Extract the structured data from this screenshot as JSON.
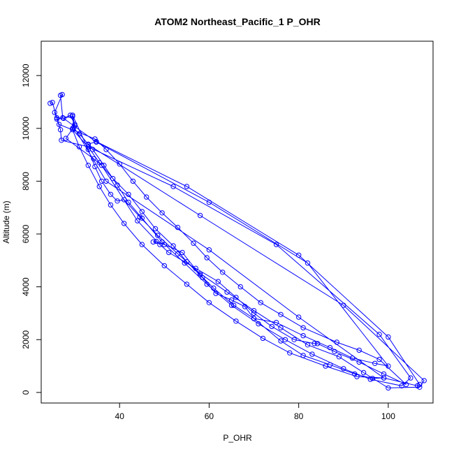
{
  "chart_data": {
    "type": "line",
    "title": "ATOM2 Northeast_Pacific_1 P_OHR",
    "xlabel": "P_OHR",
    "ylabel": "Altitude (m)",
    "xlim": [
      22.5,
      110
    ],
    "ylim": [
      -400,
      13300
    ],
    "xticks": [
      40,
      60,
      80,
      100
    ],
    "yticks": [
      0,
      2000,
      4000,
      6000,
      8000,
      10000,
      12000
    ],
    "grid": false,
    "legend": "none",
    "color": "#0000ff",
    "markers": "open-circle",
    "series": [
      {
        "points": [
          [
            24.5,
            10950
          ],
          [
            25,
            10980
          ],
          [
            26,
            10400
          ],
          [
            27.5,
            10380
          ],
          [
            29,
            10500
          ],
          [
            30,
            10150
          ],
          [
            29.5,
            10000
          ],
          [
            31,
            9800
          ],
          [
            33,
            9400
          ],
          [
            34.8,
            9500
          ],
          [
            55,
            7800
          ],
          [
            80,
            5200
          ],
          [
            100,
            2100
          ],
          [
            107,
            300
          ],
          [
            106.5,
            250
          ],
          [
            99,
            550
          ],
          [
            93,
            600
          ],
          [
            86,
            1000
          ],
          [
            78,
            1500
          ],
          [
            72,
            2050
          ],
          [
            66,
            2700
          ],
          [
            60,
            3400
          ],
          [
            55,
            4100
          ],
          [
            50,
            4800
          ],
          [
            45,
            5600
          ],
          [
            41,
            6400
          ],
          [
            38,
            7100
          ],
          [
            35.5,
            7800
          ],
          [
            33,
            8600
          ],
          [
            31,
            9300
          ],
          [
            29.5,
            9950
          ],
          [
            33,
            9300
          ],
          [
            52,
            7800
          ],
          [
            75,
            5600
          ],
          [
            98,
            2200
          ],
          [
            105,
            550
          ],
          [
            103,
            250
          ],
          [
            96,
            500
          ],
          [
            90,
            900
          ],
          [
            83,
            1450
          ],
          [
            77,
            2000
          ],
          [
            71,
            2600
          ],
          [
            65,
            3300
          ],
          [
            59.5,
            4100
          ],
          [
            54.5,
            4900
          ],
          [
            49.5,
            5700
          ],
          [
            45,
            6600
          ],
          [
            42,
            7200
          ],
          [
            39.5,
            7850
          ],
          [
            36.5,
            8600
          ],
          [
            34,
            9200
          ],
          [
            33,
            9380
          ],
          [
            58,
            6700
          ],
          [
            90,
            3300
          ],
          [
            108,
            450
          ],
          [
            107,
            200
          ],
          [
            100,
            170
          ],
          [
            94.5,
            750
          ],
          [
            89,
            1350
          ],
          [
            82,
            1800
          ],
          [
            76,
            2450
          ],
          [
            70,
            3100
          ],
          [
            64,
            3800
          ],
          [
            58,
            4500
          ],
          [
            53,
            5250
          ],
          [
            48.5,
            5950
          ],
          [
            44.5,
            6650
          ],
          [
            41,
            7300
          ],
          [
            39.5,
            7250
          ],
          [
            38,
            7500
          ],
          [
            36,
            8000
          ],
          [
            34.5,
            8550
          ],
          [
            33,
            9200
          ],
          [
            29.5,
            10500
          ],
          [
            30,
            10100
          ],
          [
            28,
            9620
          ],
          [
            34.2,
            8850
          ],
          [
            36,
            8600
          ],
          [
            44,
            6500
          ],
          [
            49,
            5600
          ],
          [
            51,
            5300
          ],
          [
            57,
            4700
          ],
          [
            62,
            4200
          ],
          [
            66,
            3600
          ],
          [
            70,
            3000
          ],
          [
            74,
            2500
          ],
          [
            79,
            2000
          ],
          [
            83.5,
            1850
          ],
          [
            84.2,
            1850
          ],
          [
            88,
            1550
          ],
          [
            93.5,
            1150
          ],
          [
            99,
            700
          ],
          [
            104,
            300
          ],
          [
            98,
            1250
          ],
          [
            93.5,
            1600
          ],
          [
            88.5,
            1900
          ],
          [
            81,
            2450
          ],
          [
            76,
            2950
          ],
          [
            71.5,
            3400
          ],
          [
            67,
            4000
          ],
          [
            63,
            4550
          ],
          [
            59.5,
            5100
          ],
          [
            56.5,
            5650
          ],
          [
            53,
            6250
          ],
          [
            49.5,
            6800
          ],
          [
            46,
            7400
          ],
          [
            43,
            8000
          ],
          [
            40,
            8650
          ],
          [
            37,
            9200
          ],
          [
            34.5,
            9600
          ],
          [
            26.5,
            10150
          ],
          [
            25.5,
            10600
          ],
          [
            27.2,
            11280
          ],
          [
            26.8,
            11250
          ],
          [
            27.3,
            10400
          ],
          [
            34.8,
            9480
          ],
          [
            60,
            7200
          ],
          [
            82,
            4900
          ],
          [
            100,
            1000
          ],
          [
            97,
            1100
          ],
          [
            92,
            1300
          ],
          [
            87,
            1700
          ],
          [
            81,
            2150
          ],
          [
            75,
            2650
          ],
          [
            70,
            2800
          ],
          [
            68,
            3250
          ],
          [
            65,
            3500
          ],
          [
            61.5,
            3750
          ],
          [
            58.5,
            4350
          ],
          [
            55,
            4950
          ],
          [
            52,
            5550
          ],
          [
            48,
            6200
          ],
          [
            45,
            6850
          ],
          [
            42,
            7500
          ],
          [
            38.5,
            8100
          ],
          [
            35.5,
            8700
          ],
          [
            33,
            9300
          ],
          [
            27,
            9550
          ],
          [
            26.8,
            9950
          ],
          [
            26,
            10350
          ],
          [
            29.5,
            10450
          ],
          [
            29.8,
            10050
          ],
          [
            37,
            8000
          ],
          [
            60,
            5400
          ],
          [
            80,
            2850
          ],
          [
            99,
            550
          ],
          [
            96.5,
            530
          ],
          [
            92.5,
            700
          ],
          [
            87,
            1050
          ],
          [
            81,
            1400
          ],
          [
            76,
            1950
          ],
          [
            70,
            2800
          ],
          [
            65.5,
            3300
          ],
          [
            61,
            3950
          ],
          [
            58,
            4450
          ],
          [
            54,
            5300
          ],
          [
            50,
            5600
          ],
          [
            47.5,
            5700
          ],
          [
            48.2,
            5720
          ]
        ]
      }
    ]
  }
}
